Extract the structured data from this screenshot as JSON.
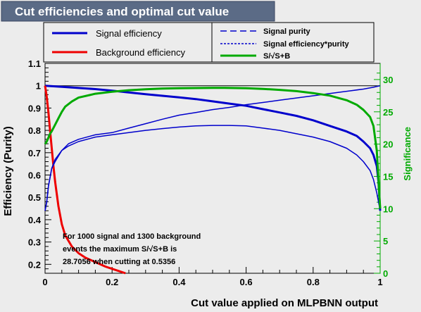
{
  "title": "Cut efficiencies and optimal cut value",
  "colors": {
    "title_bg": "#5b6b86",
    "title_text": "#ffffff",
    "background": "#ececec",
    "signal": "#0000cc",
    "background_eff": "#ee0000",
    "significance": "#00aa00",
    "axis": "#000000"
  },
  "chart_data": {
    "type": "line",
    "title": "Cut efficiencies and optimal cut value",
    "xlabel": "Cut value applied on MLPBNN output",
    "ylabel": "Efficiency (Purity)",
    "y2label": "Significance",
    "xlim": [
      0,
      1
    ],
    "ylim": [
      0.16,
      1.1
    ],
    "y2lim": [
      0,
      32.5
    ],
    "xticks": [
      "0",
      "0.2",
      "0.4",
      "0.6",
      "0.8",
      "1"
    ],
    "xtick_values": [
      0,
      0.2,
      0.4,
      0.6,
      0.8,
      1
    ],
    "yticks": [
      "0.2",
      "0.3",
      "0.4",
      "0.5",
      "0.6",
      "0.7",
      "0.8",
      "0.9",
      "1",
      "1.1"
    ],
    "ytick_values": [
      0.2,
      0.3,
      0.4,
      0.5,
      0.6,
      0.7,
      0.8,
      0.9,
      1.0,
      1.1
    ],
    "y2ticks": [
      "0",
      "5",
      "10",
      "15",
      "20",
      "25",
      "30"
    ],
    "y2tick_values": [
      0,
      5,
      10,
      15,
      20,
      25,
      30
    ],
    "grid": false,
    "reference_line_y": 1.0,
    "legend": {
      "left": [
        "Signal efficiency",
        "Background efficiency"
      ],
      "right": [
        "Signal purity",
        "Signal efficiency*purity",
        "S/√S+B"
      ]
    },
    "annotation": [
      "For 1000 signal and 1300 background",
      "events the maximum S/√S+B is",
      "28.7056 when cutting at 0.5356"
    ],
    "series": [
      {
        "name": "Signal efficiency",
        "axis": "left",
        "style": "solid",
        "x": [
          0,
          0.05,
          0.1,
          0.15,
          0.2,
          0.25,
          0.3,
          0.35,
          0.4,
          0.45,
          0.5,
          0.55,
          0.6,
          0.65,
          0.7,
          0.75,
          0.8,
          0.85,
          0.9,
          0.93,
          0.95,
          0.97,
          0.98,
          0.99,
          0.995,
          1.0
        ],
        "y": [
          1.0,
          0.995,
          0.99,
          0.985,
          0.978,
          0.97,
          0.962,
          0.955,
          0.948,
          0.94,
          0.93,
          0.92,
          0.91,
          0.895,
          0.88,
          0.865,
          0.845,
          0.82,
          0.795,
          0.775,
          0.75,
          0.72,
          0.69,
          0.64,
          0.57,
          0.44
        ]
      },
      {
        "name": "Background efficiency",
        "axis": "left",
        "style": "solid",
        "x": [
          0,
          0.005,
          0.01,
          0.015,
          0.02,
          0.025,
          0.03,
          0.04,
          0.05,
          0.06,
          0.08,
          0.1,
          0.12,
          0.15,
          0.18,
          0.2,
          0.22,
          0.24
        ],
        "y": [
          1.0,
          0.95,
          0.88,
          0.8,
          0.72,
          0.64,
          0.57,
          0.46,
          0.38,
          0.33,
          0.28,
          0.25,
          0.23,
          0.21,
          0.19,
          0.18,
          0.17,
          0.16
        ]
      },
      {
        "name": "Signal purity",
        "axis": "left",
        "style": "dashed",
        "x": [
          0,
          0.005,
          0.01,
          0.02,
          0.03,
          0.05,
          0.07,
          0.1,
          0.15,
          0.2,
          0.25,
          0.3,
          0.35,
          0.4,
          0.45,
          0.5,
          0.55,
          0.6,
          0.65,
          0.7,
          0.75,
          0.8,
          0.85,
          0.9,
          0.95,
          0.98,
          1.0
        ],
        "y": [
          0.44,
          0.48,
          0.55,
          0.63,
          0.67,
          0.71,
          0.74,
          0.76,
          0.78,
          0.79,
          0.81,
          0.83,
          0.85,
          0.868,
          0.88,
          0.893,
          0.903,
          0.915,
          0.925,
          0.935,
          0.945,
          0.955,
          0.965,
          0.975,
          0.985,
          0.993,
          1.0
        ]
      },
      {
        "name": "Signal efficiency*purity",
        "axis": "left",
        "style": "dotted",
        "x": [
          0,
          0.005,
          0.01,
          0.02,
          0.03,
          0.05,
          0.07,
          0.1,
          0.15,
          0.2,
          0.25,
          0.3,
          0.35,
          0.4,
          0.45,
          0.5,
          0.55,
          0.6,
          0.65,
          0.7,
          0.75,
          0.8,
          0.85,
          0.9,
          0.93,
          0.95,
          0.97,
          0.98,
          0.99,
          1.0
        ],
        "y": [
          0.44,
          0.48,
          0.55,
          0.63,
          0.66,
          0.71,
          0.73,
          0.75,
          0.77,
          0.78,
          0.79,
          0.8,
          0.808,
          0.815,
          0.82,
          0.822,
          0.822,
          0.82,
          0.81,
          0.8,
          0.785,
          0.77,
          0.75,
          0.72,
          0.69,
          0.66,
          0.62,
          0.58,
          0.52,
          0.44
        ]
      },
      {
        "name": "S/√S+B",
        "axis": "right",
        "style": "solid",
        "x": [
          0,
          0.005,
          0.01,
          0.015,
          0.02,
          0.03,
          0.04,
          0.05,
          0.06,
          0.08,
          0.1,
          0.15,
          0.2,
          0.25,
          0.3,
          0.35,
          0.4,
          0.45,
          0.5,
          0.5356,
          0.6,
          0.65,
          0.7,
          0.75,
          0.8,
          0.85,
          0.9,
          0.93,
          0.95,
          0.97,
          0.98,
          0.99,
          1.0
        ],
        "y": [
          20.0,
          20.4,
          21.0,
          21.6,
          22.0,
          23.0,
          24.0,
          25.0,
          25.8,
          26.6,
          27.2,
          27.8,
          28.1,
          28.35,
          28.5,
          28.6,
          28.65,
          28.68,
          28.7,
          28.7056,
          28.65,
          28.55,
          28.4,
          28.2,
          27.9,
          27.5,
          26.8,
          26.1,
          25.3,
          24.2,
          22.8,
          19.0,
          10.0
        ]
      }
    ]
  }
}
